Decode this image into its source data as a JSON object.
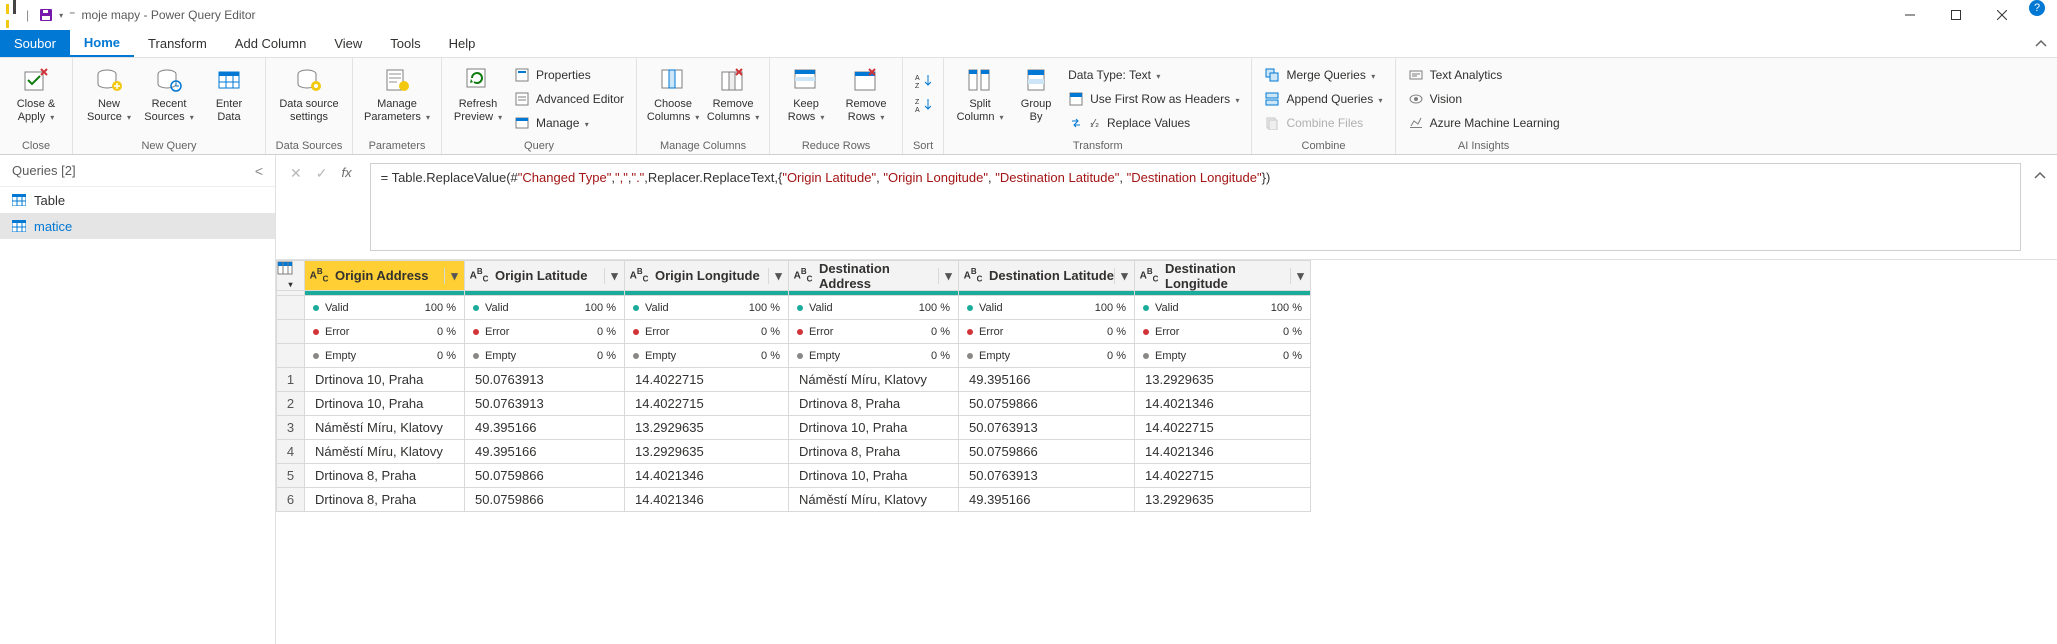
{
  "window": {
    "title": "moje mapy - Power Query Editor",
    "app_icon_colors": [
      "#f2c811",
      "#444444",
      "#f2c811"
    ]
  },
  "qat": {
    "save_tip": "Save",
    "undo_tip": "Undo"
  },
  "tabs": {
    "file": "Soubor",
    "items": [
      "Home",
      "Transform",
      "Add Column",
      "View",
      "Tools",
      "Help"
    ],
    "active_index": 0
  },
  "ribbon": {
    "close": {
      "label": "Close &\nApply",
      "group": "Close"
    },
    "new_source": "New\nSource",
    "recent_sources": "Recent\nSources",
    "enter_data": "Enter\nData",
    "new_query_group": "New Query",
    "data_source_settings": "Data source\nsettings",
    "data_sources_group": "Data Sources",
    "manage_parameters": "Manage\nParameters",
    "parameters_group": "Parameters",
    "refresh_preview": "Refresh\nPreview",
    "properties": "Properties",
    "advanced_editor": "Advanced Editor",
    "manage": "Manage",
    "query_group": "Query",
    "choose_columns": "Choose\nColumns",
    "remove_columns": "Remove\nColumns",
    "manage_columns_group": "Manage Columns",
    "keep_rows": "Keep\nRows",
    "remove_rows": "Remove\nRows",
    "reduce_rows_group": "Reduce Rows",
    "sort_group": "Sort",
    "split_column": "Split\nColumn",
    "group_by": "Group\nBy",
    "data_type": "Data Type: Text",
    "first_row_headers": "Use First Row as Headers",
    "replace_values": "Replace Values",
    "transform_group": "Transform",
    "merge_queries": "Merge Queries",
    "append_queries": "Append Queries",
    "combine_files": "Combine Files",
    "combine_group": "Combine",
    "text_analytics": "Text Analytics",
    "vision": "Vision",
    "aml": "Azure Machine Learning",
    "ai_group": "AI Insights"
  },
  "queries": {
    "header": "Queries [2]",
    "items": [
      {
        "name": "Table",
        "selected": false
      },
      {
        "name": "matice",
        "selected": true
      }
    ]
  },
  "formula": {
    "prefix": "= Table.ReplaceValue(#",
    "s1": "\"Changed Type\"",
    "mid1": ",",
    "s2": "\",\"",
    "mid2": ",",
    "s3": "\".\"",
    "mid3": ",Replacer.ReplaceText,{",
    "s4": "\"Origin Latitude\"",
    "mid4": ", ",
    "s5": "\"Origin Longitude\"",
    "mid5": ", ",
    "s6": "\"Destination Latitude\"",
    "mid6": ", ",
    "s7": "\"Destination Longitude\"",
    "suffix": "})"
  },
  "columns": [
    {
      "name": "Origin Address",
      "selected": true
    },
    {
      "name": "Origin Latitude",
      "selected": false
    },
    {
      "name": "Origin Longitude",
      "selected": false
    },
    {
      "name": "Destination Address",
      "selected": false
    },
    {
      "name": "Destination Latitude",
      "selected": false
    },
    {
      "name": "Destination Longitude",
      "selected": false
    }
  ],
  "stats": {
    "valid_label": "Valid",
    "error_label": "Error",
    "empty_label": "Empty",
    "valid_pct": "100 %",
    "zero_pct": "0 %",
    "valid_color": "#1aab9b",
    "error_color": "#d13438",
    "empty_color": "#8a8886"
  },
  "rows": [
    [
      "Drtinova 10, Praha",
      "50.0763913",
      "14.4022715",
      "Náměstí Míru, Klatovy",
      "49.395166",
      "13.2929635"
    ],
    [
      "Drtinova 10, Praha",
      "50.0763913",
      "14.4022715",
      "Drtinova 8, Praha",
      "50.0759866",
      "14.4021346"
    ],
    [
      "Náměstí Míru, Klatovy",
      "49.395166",
      "13.2929635",
      "Drtinova 10, Praha",
      "50.0763913",
      "14.4022715"
    ],
    [
      "Náměstí Míru, Klatovy",
      "49.395166",
      "13.2929635",
      "Drtinova 8, Praha",
      "50.0759866",
      "14.4021346"
    ],
    [
      "Drtinova 8, Praha",
      "50.0759866",
      "14.4021346",
      "Drtinova 10, Praha",
      "50.0763913",
      "14.4022715"
    ],
    [
      "Drtinova 8, Praha",
      "50.0759866",
      "14.4021346",
      "Náměstí Míru, Klatovy",
      "49.395166",
      "13.2929635"
    ]
  ],
  "colors": {
    "accent": "#0078d4",
    "col_sel_bg": "#ffcf33",
    "teal": "#1aab9b"
  }
}
